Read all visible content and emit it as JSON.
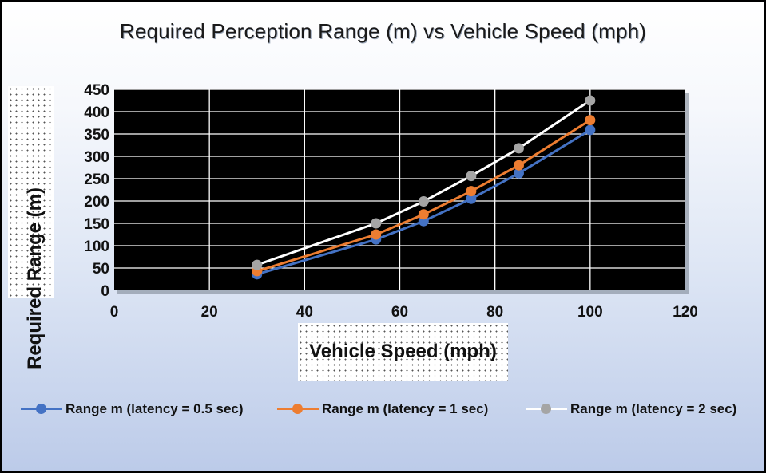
{
  "chart_data": {
    "type": "line",
    "title": "Required Perception Range (m) vs Vehicle Speed (mph)",
    "xlabel": "Vehicle Speed (mph)",
    "ylabel": "Required Range  (m)",
    "xlim": [
      0,
      120
    ],
    "ylim": [
      0,
      450
    ],
    "x_ticks": [
      "0",
      "20",
      "40",
      "60",
      "80",
      "100",
      "120"
    ],
    "y_ticks": [
      "0",
      "50",
      "100",
      "150",
      "200",
      "250",
      "300",
      "350",
      "400",
      "450"
    ],
    "x": [
      30,
      55,
      65,
      75,
      85,
      100
    ],
    "grid": true,
    "legend_position": "bottom",
    "plot_background": "#000000",
    "series": [
      {
        "name": "Range m (latency = 0.5 sec)",
        "color": "#4472c4",
        "line_color": "#4472c4",
        "values": [
          36,
          114,
          155,
          205,
          262,
          359
        ]
      },
      {
        "name": "Range  m (latency = 1 sec)",
        "color": "#ed7d31",
        "line_color": "#ed7d31",
        "values": [
          43,
          125,
          170,
          222,
          280,
          381
        ]
      },
      {
        "name": "Range m (latency = 2 sec)",
        "color": "#a5a5a5",
        "line_color": "#ffffff",
        "values": [
          57,
          150,
          199,
          256,
          318,
          425
        ]
      }
    ]
  }
}
